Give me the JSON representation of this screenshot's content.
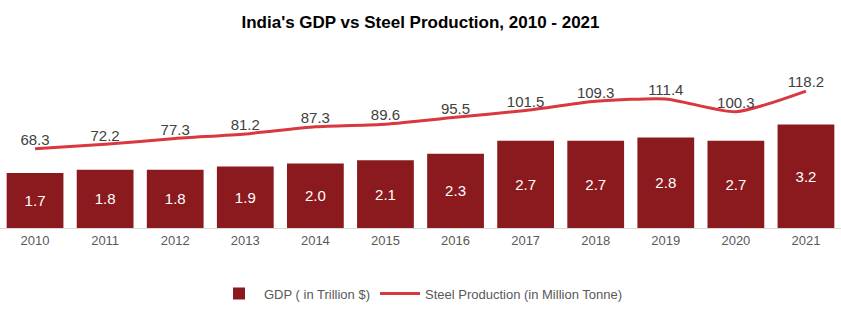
{
  "chart_data": {
    "type": "bar",
    "title": "India's GDP vs Steel Production, 2010 - 2021",
    "categories": [
      "2010",
      "2011",
      "2012",
      "2013",
      "2014",
      "2015",
      "2016",
      "2017",
      "2018",
      "2019",
      "2020",
      "2021"
    ],
    "series": [
      {
        "name": "GDP ( in Trillion $)",
        "type": "bar",
        "color": "#8B1A1E",
        "values": [
          1.7,
          1.8,
          1.8,
          1.9,
          2.0,
          2.1,
          2.3,
          2.7,
          2.7,
          2.8,
          2.7,
          3.2
        ],
        "value_labels": [
          "1.7",
          "1.8",
          "1.8",
          "1.9",
          "2.0",
          "2.1",
          "2.3",
          "2.7",
          "2.7",
          "2.8",
          "2.7",
          "3.2"
        ]
      },
      {
        "name": "Steel Production (in Million Tonne)",
        "type": "line",
        "axis": "y2",
        "color": "#D9383F",
        "values": [
          68.3,
          72.2,
          77.3,
          81.2,
          87.3,
          89.6,
          95.5,
          101.5,
          109.3,
          111.4,
          100.3,
          118.2
        ]
      }
    ],
    "ylim": [
      0,
      5.2
    ],
    "y2lim": [
      0,
      145
    ],
    "data_labels": true,
    "legend": "bottom",
    "grid": false,
    "tick_labels": "x"
  }
}
